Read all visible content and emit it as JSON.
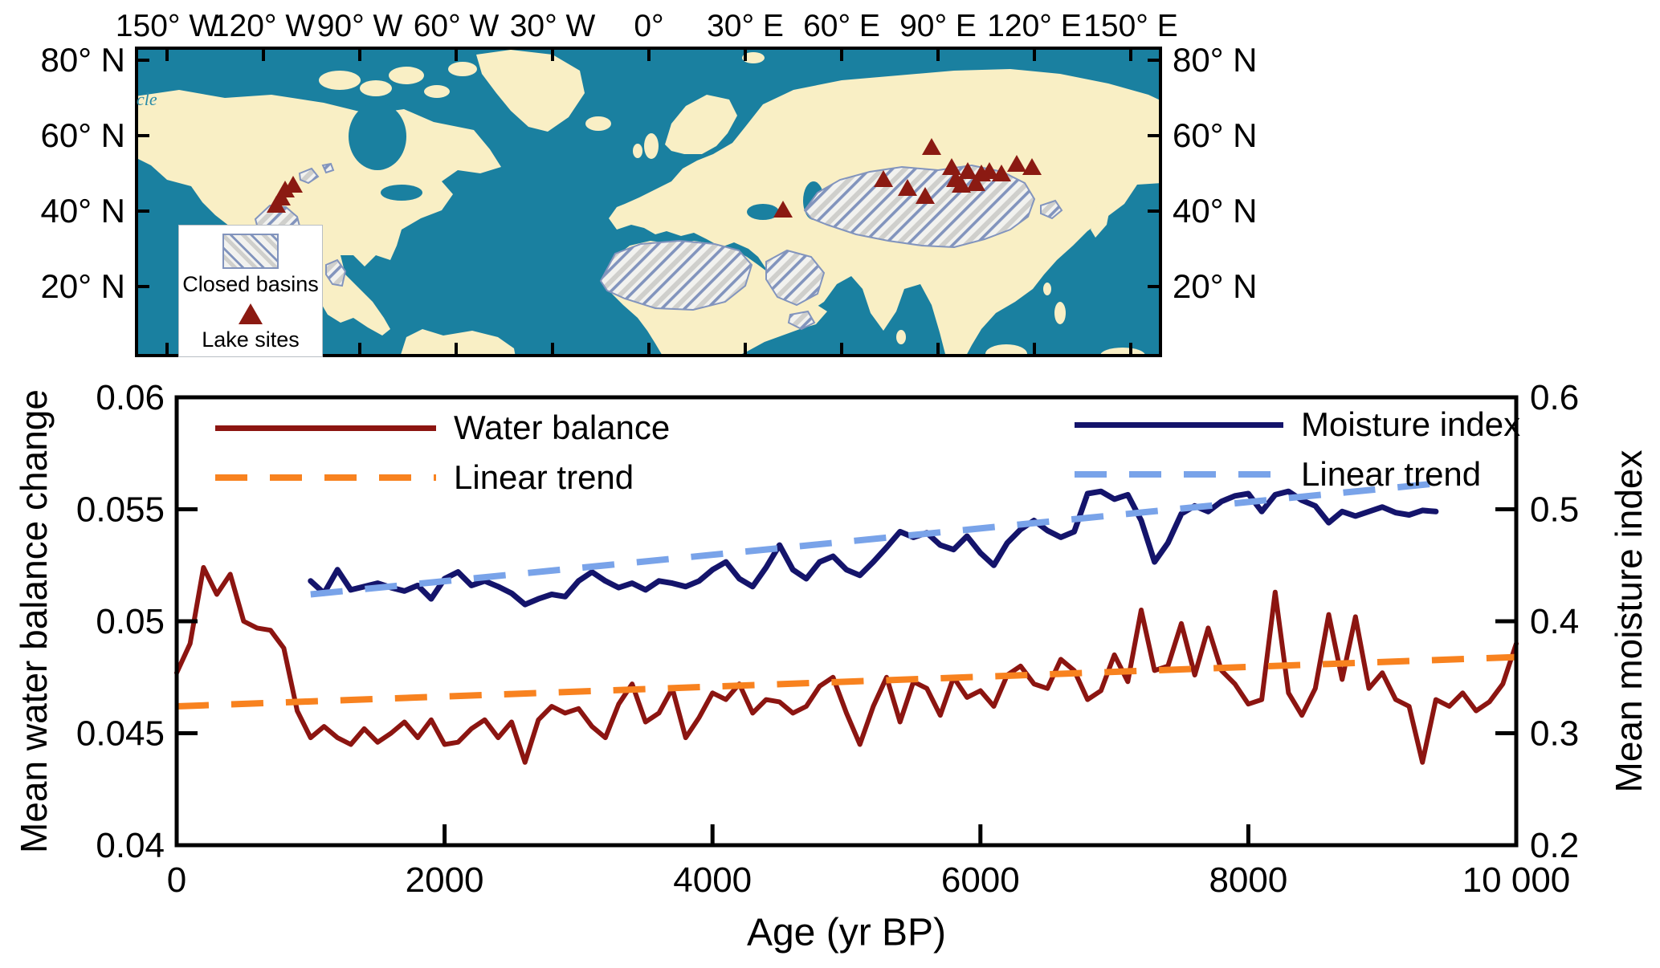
{
  "map": {
    "lon_labels": [
      "150° W",
      "120° W",
      "90° W",
      "60° W",
      "30° W",
      "0°",
      "30° E",
      "60° E",
      "90° E",
      "120° E",
      "150° E"
    ],
    "lat_labels": [
      "80° N",
      "60° N",
      "40° N",
      "20° N"
    ],
    "legend": {
      "closed_basins_label": "Closed basins",
      "lake_sites_label": "Lake sites"
    },
    "edge_label_fragment": "cle",
    "colors": {
      "ocean": "#1A80A0",
      "land": "#F9EFC5",
      "hatch_line": "#8294BD",
      "hatch_bg": "#F2F2EF",
      "lake_marker": "#8B1A12"
    },
    "lake_sites": [
      [
        187,
        180
      ],
      [
        197,
        174
      ],
      [
        182,
        190
      ],
      [
        176,
        199
      ],
      [
        807,
        205
      ],
      [
        932,
        167
      ],
      [
        992,
        127
      ],
      [
        1017,
        152
      ],
      [
        1022,
        167
      ],
      [
        1037,
        157
      ],
      [
        1047,
        172
      ],
      [
        1054,
        160
      ],
      [
        1064,
        157
      ],
      [
        1079,
        160
      ],
      [
        1029,
        174
      ],
      [
        984,
        188
      ],
      [
        962,
        178
      ],
      [
        1098,
        148
      ],
      [
        1117,
        152
      ]
    ],
    "closed_basin_regions": [
      "Great Basin (western North America)",
      "Northern plains patches",
      "Northern Mexico",
      "Sahara (North Africa)",
      "Arabian Peninsula",
      "Horn of Africa",
      "Central Asia / Mongolian and Tibetan plateaus",
      "East Asia patch"
    ]
  },
  "chart_data": {
    "type": "line",
    "xlabel": "Age (yr BP)",
    "ylabel_left": "Mean water balance change",
    "ylabel_right": "Mean moisture index",
    "xlim": [
      0,
      10000
    ],
    "x_ticks": [
      0,
      2000,
      4000,
      6000,
      8000,
      10000
    ],
    "x_tick_labels": [
      "0",
      "2000",
      "4000",
      "6000",
      "8000",
      "10 000"
    ],
    "ylim_left": [
      0.04,
      0.06
    ],
    "y_tick_values_left": [
      0.04,
      0.045,
      0.05,
      0.055,
      0.06
    ],
    "y_tick_labels_left": [
      "0.04",
      "0.045",
      "0.05",
      "0.055",
      "0.06"
    ],
    "ylim_right": [
      0.2,
      0.6
    ],
    "y_tick_values_right": [
      0.2,
      0.3,
      0.4,
      0.5,
      0.6
    ],
    "y_tick_labels_right": [
      "0.2",
      "0.3",
      "0.4",
      "0.5",
      "0.6"
    ],
    "grid": false,
    "series": [
      {
        "name": "Water balance",
        "axis": "left",
        "color": "#8C1511",
        "style": "solid",
        "width": 6,
        "x_start": 0,
        "x_step": 100,
        "y": [
          0.0477,
          0.049,
          0.0524,
          0.0512,
          0.0521,
          0.05,
          0.0497,
          0.0496,
          0.0488,
          0.046,
          0.0448,
          0.0453,
          0.0448,
          0.0445,
          0.0452,
          0.0446,
          0.045,
          0.0455,
          0.0448,
          0.0456,
          0.0445,
          0.0446,
          0.0452,
          0.0456,
          0.0448,
          0.0455,
          0.0437,
          0.0456,
          0.0462,
          0.0459,
          0.0461,
          0.0453,
          0.0448,
          0.0463,
          0.0472,
          0.0455,
          0.0459,
          0.047,
          0.0448,
          0.0457,
          0.0468,
          0.0465,
          0.0472,
          0.0459,
          0.0465,
          0.0464,
          0.0459,
          0.0462,
          0.0471,
          0.0475,
          0.0459,
          0.0445,
          0.0462,
          0.0475,
          0.0455,
          0.0473,
          0.047,
          0.0458,
          0.0475,
          0.0466,
          0.0469,
          0.0462,
          0.0476,
          0.048,
          0.0472,
          0.047,
          0.0483,
          0.0478,
          0.0465,
          0.0469,
          0.0485,
          0.0473,
          0.0505,
          0.0478,
          0.048,
          0.0499,
          0.0476,
          0.0497,
          0.0478,
          0.0472,
          0.0463,
          0.0465,
          0.0513,
          0.0468,
          0.0458,
          0.047,
          0.0503,
          0.0474,
          0.0502,
          0.047,
          0.0477,
          0.0465,
          0.0462,
          0.0437,
          0.0465,
          0.0462,
          0.0468,
          0.046,
          0.0464,
          0.0472,
          0.049
        ]
      },
      {
        "name": "Linear trend",
        "axis": "left",
        "color": "#F8821F",
        "style": "dashed",
        "width": 8,
        "x": [
          0,
          10000
        ],
        "y": [
          0.0462,
          0.0484
        ]
      },
      {
        "name": "Moisture index",
        "axis": "right",
        "color": "#14146B",
        "style": "solid",
        "width": 7,
        "x_start": 1000,
        "x_step": 100,
        "y": [
          0.436,
          0.425,
          0.446,
          0.428,
          0.431,
          0.434,
          0.43,
          0.427,
          0.432,
          0.42,
          0.438,
          0.444,
          0.432,
          0.436,
          0.431,
          0.425,
          0.415,
          0.42,
          0.424,
          0.422,
          0.436,
          0.444,
          0.436,
          0.43,
          0.434,
          0.428,
          0.436,
          0.434,
          0.431,
          0.436,
          0.446,
          0.453,
          0.438,
          0.431,
          0.448,
          0.468,
          0.446,
          0.438,
          0.453,
          0.458,
          0.446,
          0.441,
          0.453,
          0.466,
          0.48,
          0.475,
          0.479,
          0.468,
          0.464,
          0.476,
          0.461,
          0.45,
          0.47,
          0.482,
          0.49,
          0.481,
          0.475,
          0.48,
          0.514,
          0.516,
          0.509,
          0.513,
          0.49,
          0.453,
          0.47,
          0.496,
          0.503,
          0.498,
          0.507,
          0.512,
          0.514,
          0.498,
          0.513,
          0.516,
          0.508,
          0.503,
          0.488,
          0.498,
          0.494,
          0.498,
          0.502,
          0.497,
          0.495,
          0.499,
          0.498
        ]
      },
      {
        "name": "Linear trend",
        "axis": "right",
        "color": "#79A3E9",
        "style": "dashed",
        "width": 8,
        "x": [
          1000,
          9400
        ],
        "y": [
          0.424,
          0.523
        ]
      }
    ]
  }
}
